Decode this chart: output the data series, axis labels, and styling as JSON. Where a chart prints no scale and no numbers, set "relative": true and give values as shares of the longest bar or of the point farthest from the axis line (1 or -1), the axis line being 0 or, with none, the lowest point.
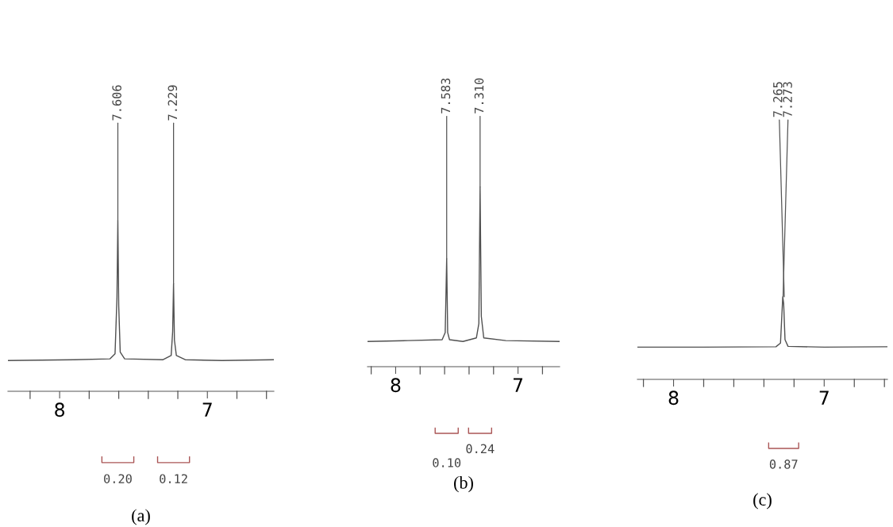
{
  "chart_data": [
    {
      "type": "line",
      "title": "(a)",
      "relative": true,
      "color": "#505050",
      "xlim": [
        8.35,
        6.55
      ],
      "xticks": [
        {
          "value": 8.2,
          "label": null
        },
        8,
        {
          "value": 7.8,
          "label": null
        },
        {
          "value": 7.6,
          "label": null
        },
        {
          "value": 7.4,
          "label": null
        },
        {
          "value": 7.2,
          "label": null
        },
        7,
        {
          "value": 6.8,
          "label": null
        },
        {
          "value": 6.6,
          "label": null
        }
      ],
      "x": [
        8.35,
        7.9,
        7.66,
        7.625,
        7.612,
        7.606,
        7.6,
        7.59,
        7.56,
        7.3,
        7.245,
        7.235,
        7.229,
        7.223,
        7.21,
        7.15,
        6.9,
        6.55
      ],
      "values": [
        0.18,
        0.185,
        0.19,
        0.22,
        0.55,
        1,
        0.5,
        0.23,
        0.19,
        0.185,
        0.21,
        0.35,
        0.63,
        0.3,
        0.21,
        0.185,
        0.18,
        0.185
      ],
      "annotations": [
        {
          "text": "7.606",
          "x": 7.606,
          "y": 1
        },
        {
          "text": "7.229",
          "x": 7.229,
          "y": 0.63
        },
        "0.20",
        "0.12"
      ]
    },
    {
      "type": "line",
      "title": "(b)",
      "relative": true,
      "color": "#505050",
      "xlim": [
        8.23,
        6.66
      ],
      "xticks": [
        {
          "value": 8.2,
          "label": null
        },
        8,
        {
          "value": 7.8,
          "label": null
        },
        {
          "value": 7.6,
          "label": null
        },
        {
          "value": 7.4,
          "label": null
        },
        {
          "value": 7.2,
          "label": null
        },
        7,
        {
          "value": 6.8,
          "label": null
        }
      ],
      "x": [
        8.23,
        7.9,
        7.62,
        7.595,
        7.583,
        7.575,
        7.56,
        7.45,
        7.34,
        7.32,
        7.31,
        7.3,
        7.28,
        7.1,
        6.66
      ],
      "values": [
        0.14,
        0.145,
        0.15,
        0.19,
        0.6,
        0.19,
        0.15,
        0.14,
        0.16,
        0.24,
        1,
        0.28,
        0.16,
        0.145,
        0.14
      ],
      "annotations": [
        {
          "text": "7.583",
          "x": 7.583,
          "y": 0.6
        },
        {
          "text": "7.310",
          "x": 7.31,
          "y": 1
        },
        "0.10",
        "0.24"
      ]
    },
    {
      "type": "line",
      "title": "(c)",
      "relative": true,
      "color": "#505050",
      "xlim": [
        8.24,
        6.58
      ],
      "xticks": [
        {
          "value": 8.2,
          "label": null
        },
        8,
        {
          "value": 7.8,
          "label": null
        },
        {
          "value": 7.6,
          "label": null
        },
        {
          "value": 7.4,
          "label": null
        },
        {
          "value": 7.2,
          "label": null
        },
        7,
        {
          "value": 6.8,
          "label": null
        },
        {
          "value": 6.6,
          "label": null
        }
      ],
      "x": [
        8.24,
        7.8,
        7.32,
        7.29,
        7.275,
        7.269,
        7.26,
        7.24,
        7.0,
        6.58
      ],
      "values": [
        0.39,
        0.39,
        0.395,
        0.44,
        1,
        0.92,
        0.48,
        0.4,
        0.39,
        0.395
      ],
      "annotations": [
        {
          "text": "7.273",
          "x": 7.273,
          "y": 1
        },
        {
          "text": "7.265",
          "x": 7.265,
          "y": 1
        },
        "0.87"
      ]
    }
  ]
}
